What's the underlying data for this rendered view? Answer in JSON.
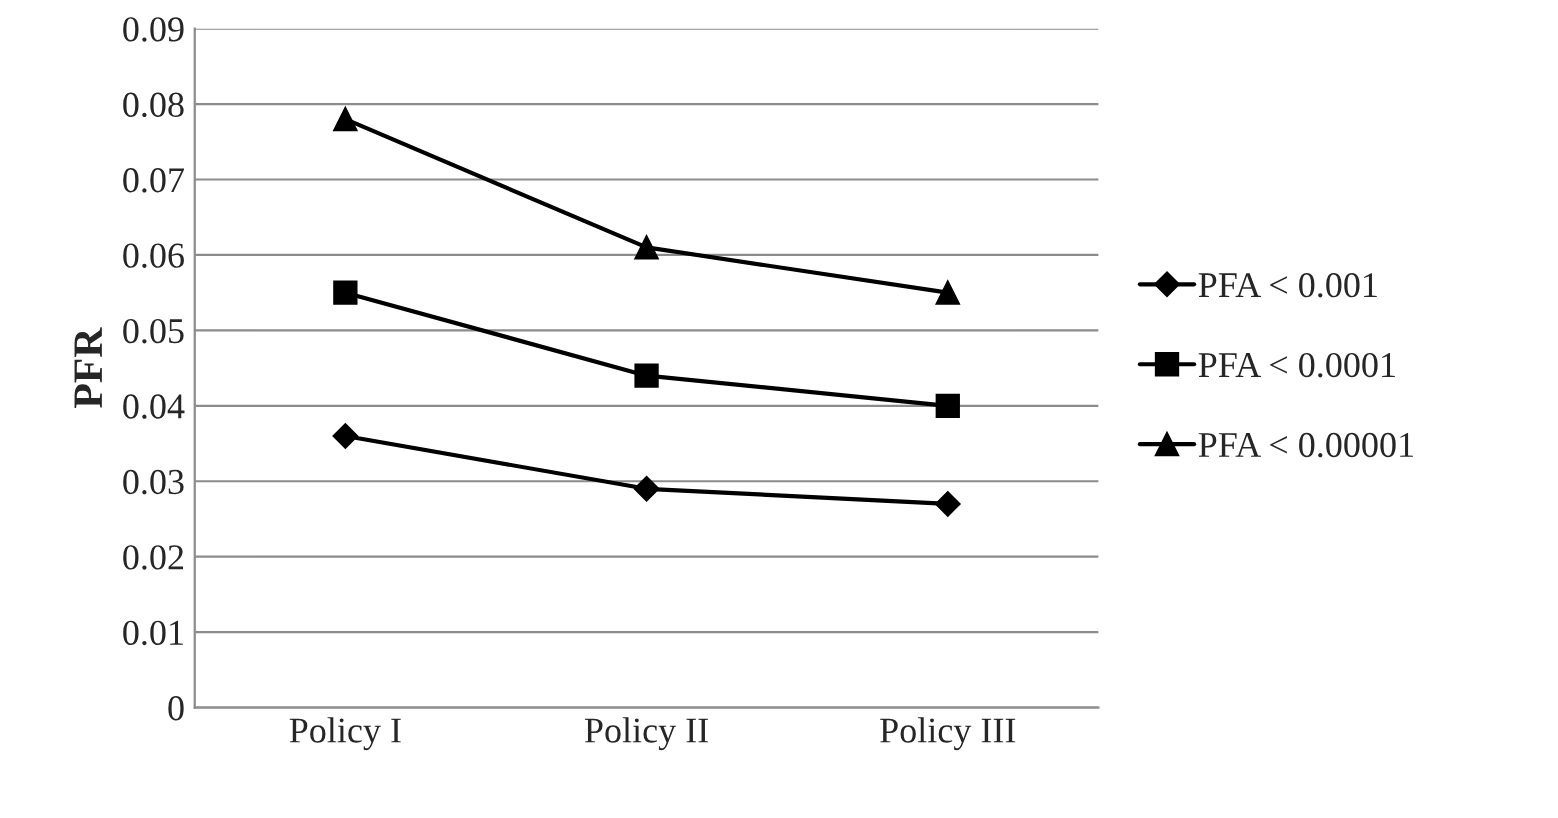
{
  "chart_data": {
    "type": "line",
    "ylabel": "PFR",
    "categories": [
      "Policy I",
      "Policy II",
      "Policy III"
    ],
    "series": [
      {
        "name": "PFA < 0.001",
        "color": "#000000",
        "marker": "diamond",
        "values": [
          0.036,
          0.029,
          0.027
        ]
      },
      {
        "name": "PFA < 0.0001",
        "color": "#000000",
        "marker": "square",
        "values": [
          0.055,
          0.044,
          0.04
        ]
      },
      {
        "name": "PFA < 0.00001",
        "color": "#000000",
        "marker": "triangle",
        "values": [
          0.078,
          0.061,
          0.055
        ]
      }
    ],
    "ylim": [
      0,
      0.09
    ],
    "yticks": [
      0,
      0.01,
      0.02,
      0.03,
      0.04,
      0.05,
      0.06,
      0.07,
      0.08,
      0.09
    ],
    "grid": "y",
    "legend": "right",
    "line_style": "solid"
  }
}
